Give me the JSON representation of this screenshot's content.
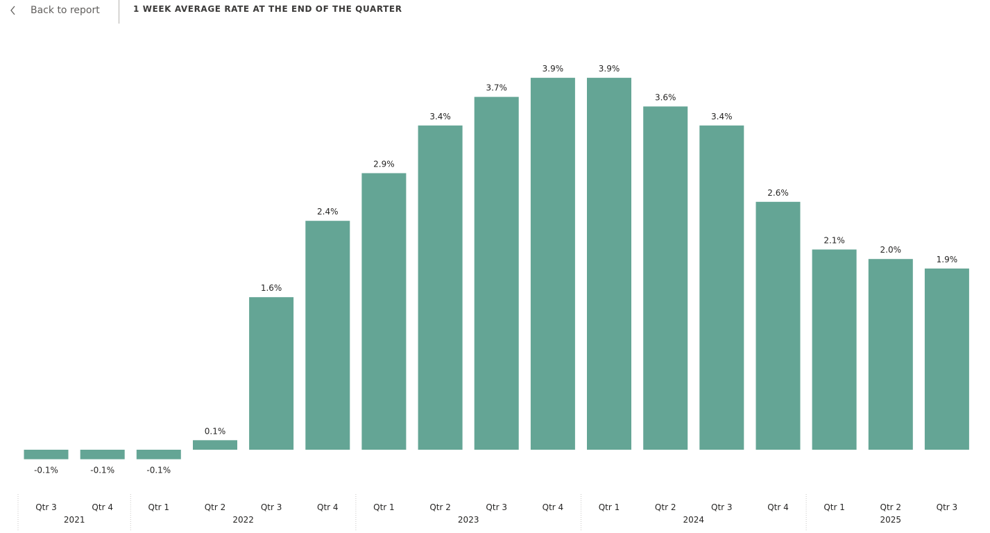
{
  "header": {
    "back_label": "Back to report",
    "back_icon": "chevron-left-icon",
    "title": "1 WEEK AVERAGE RATE AT THE END OF THE QUARTER"
  },
  "chart_data": {
    "type": "bar",
    "title": "1 WEEK AVERAGE RATE AT THE END OF THE QUARTER",
    "xlabel": "",
    "ylabel": "",
    "categories": [
      "Qtr 3",
      "Qtr 4",
      "Qtr 1",
      "Qtr 2",
      "Qtr 3",
      "Qtr 4",
      "Qtr 1",
      "Qtr 2",
      "Qtr 3",
      "Qtr 4",
      "Qtr 1",
      "Qtr 2",
      "Qtr 3",
      "Qtr 4",
      "Qtr 1",
      "Qtr 2",
      "Qtr 3"
    ],
    "years": [
      {
        "label": "2021",
        "count": 2
      },
      {
        "label": "2022",
        "count": 4
      },
      {
        "label": "2023",
        "count": 4
      },
      {
        "label": "2024",
        "count": 4
      },
      {
        "label": "2025",
        "count": 3
      }
    ],
    "values": [
      -0.1,
      -0.1,
      -0.1,
      0.1,
      1.6,
      2.4,
      2.9,
      3.4,
      3.7,
      3.9,
      3.9,
      3.6,
      3.4,
      2.6,
      2.1,
      2.0,
      1.9
    ],
    "data_labels": [
      "-0.1%",
      "-0.1%",
      "-0.1%",
      "0.1%",
      "1.6%",
      "2.4%",
      "2.9%",
      "3.4%",
      "3.7%",
      "3.9%",
      "3.9%",
      "3.6%",
      "3.4%",
      "2.6%",
      "2.1%",
      "2.0%",
      "1.9%"
    ],
    "ylim": [
      -0.1,
      3.9
    ],
    "grid": false,
    "legend": "none",
    "bar_color": "#64a595",
    "separator_color": "#c8c6c4"
  }
}
